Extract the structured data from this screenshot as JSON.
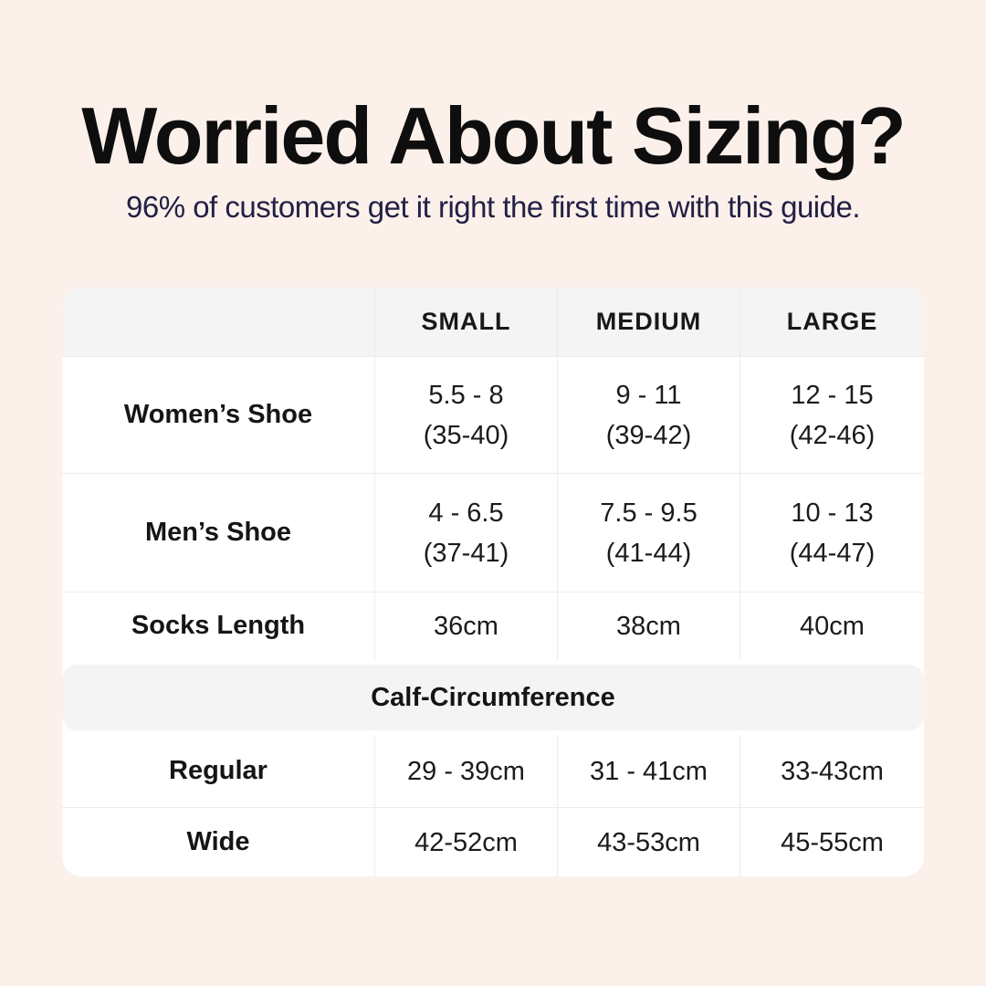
{
  "colors": {
    "page_bg": "#fcf1ea",
    "card_bg": "#ffffff",
    "band_bg": "#f4f4f5",
    "divider": "#ececec",
    "title_text": "#0e0e0f",
    "subtitle_text": "#232046",
    "table_text": "#1b1b1e"
  },
  "chart_data": {
    "type": "table",
    "title": "Worried About Sizing?",
    "subtitle": "96% of customers get it right the first time with this guide.",
    "columns": [
      "",
      "SMALL",
      "MEDIUM",
      "LARGE"
    ],
    "rows": [
      {
        "label": "Women’s Shoe",
        "cells": [
          {
            "line1": "5.5 - 8",
            "line2": "(35-40)"
          },
          {
            "line1": "9 - 11",
            "line2": "(39-42)"
          },
          {
            "line1": "12 - 15",
            "line2": "(42-46)"
          }
        ]
      },
      {
        "label": "Men’s Shoe",
        "cells": [
          {
            "line1": "4 - 6.5",
            "line2": "(37-41)"
          },
          {
            "line1": "7.5 - 9.5",
            "line2": "(41-44)"
          },
          {
            "line1": "10 - 13",
            "line2": "(44-47)"
          }
        ]
      },
      {
        "label": "Socks Length",
        "cells": [
          {
            "line1": "36cm"
          },
          {
            "line1": "38cm"
          },
          {
            "line1": "40cm"
          }
        ]
      },
      {
        "label": "Calf-Circumference",
        "section": true
      },
      {
        "label": "Regular",
        "cells": [
          {
            "line1": "29 - 39cm"
          },
          {
            "line1": "31 - 41cm"
          },
          {
            "line1": "33-43cm"
          }
        ]
      },
      {
        "label": "Wide",
        "cells": [
          {
            "line1": "42-52cm"
          },
          {
            "line1": "43-53cm"
          },
          {
            "line1": "45-55cm"
          }
        ]
      }
    ]
  }
}
